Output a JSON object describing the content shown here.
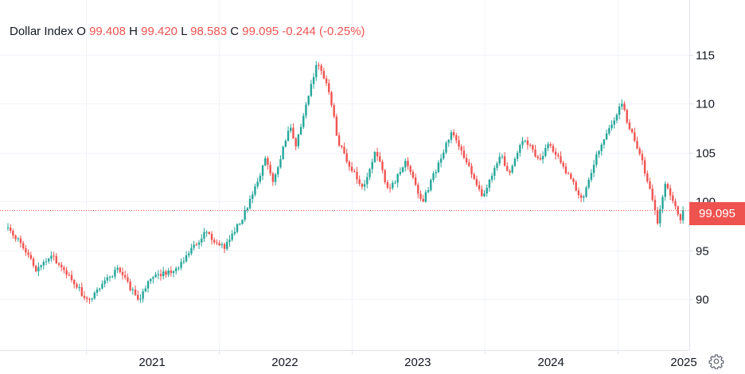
{
  "legend": {
    "symbol": "Dollar Index",
    "o_label": "O",
    "o_value": "99.408",
    "h_label": "H",
    "h_value": "99.420",
    "l_label": "L",
    "l_value": "98.583",
    "c_label": "C",
    "c_value": "99.095",
    "change": "-0.244 (-0.25%)"
  },
  "price_badge": "99.095",
  "colors": {
    "up": "#26a69a",
    "down": "#ef5350",
    "grid": "#f0f3fa",
    "axis": "#e0e3eb"
  },
  "icons": {
    "settings": "gear-icon"
  },
  "chart_data": {
    "type": "candlestick",
    "series_name": "Dollar Index",
    "period": "weekly",
    "y_ticks": [
      90,
      95,
      100,
      105,
      110,
      115
    ],
    "x_ticks": [
      "2021",
      "2022",
      "2023",
      "2024",
      "2025"
    ],
    "ylim": [
      86,
      119
    ],
    "last_price": 99.095,
    "anchors": [
      [
        "2020-06-01",
        97.3
      ],
      [
        "2020-07-20",
        95.0
      ],
      [
        "2020-08-15",
        93.0
      ],
      [
        "2020-10-01",
        94.3
      ],
      [
        "2020-11-15",
        92.5
      ],
      [
        "2021-01-05",
        89.8
      ],
      [
        "2021-03-31",
        93.2
      ],
      [
        "2021-05-25",
        89.8
      ],
      [
        "2021-07-01",
        92.4
      ],
      [
        "2021-09-01",
        92.8
      ],
      [
        "2021-11-25",
        96.9
      ],
      [
        "2022-01-15",
        95.2
      ],
      [
        "2022-03-10",
        98.5
      ],
      [
        "2022-05-12",
        104.5
      ],
      [
        "2022-06-01",
        101.8
      ],
      [
        "2022-07-15",
        107.8
      ],
      [
        "2022-08-01",
        105.5
      ],
      [
        "2022-09-28",
        114.3
      ],
      [
        "2022-11-01",
        111.2
      ],
      [
        "2022-11-25",
        106.0
      ],
      [
        "2023-02-01",
        101.2
      ],
      [
        "2023-03-08",
        105.3
      ],
      [
        "2023-04-14",
        100.9
      ],
      [
        "2023-05-31",
        104.3
      ],
      [
        "2023-07-14",
        99.8
      ],
      [
        "2023-10-03",
        107.1
      ],
      [
        "2023-12-27",
        100.6
      ],
      [
        "2024-02-14",
        104.9
      ],
      [
        "2024-03-08",
        102.4
      ],
      [
        "2024-04-16",
        106.4
      ],
      [
        "2024-06-05",
        104.1
      ],
      [
        "2024-06-26",
        106.1
      ],
      [
        "2024-09-27",
        100.2
      ],
      [
        "2024-11-08",
        105.0
      ],
      [
        "2025-01-13",
        110.0
      ],
      [
        "2025-01-31",
        107.8
      ],
      [
        "2025-03-04",
        104.9
      ],
      [
        "2025-04-21",
        98.0
      ],
      [
        "2025-05-12",
        101.7
      ],
      [
        "2025-06-25",
        97.8
      ],
      [
        "2025-07-02",
        99.1
      ]
    ]
  }
}
